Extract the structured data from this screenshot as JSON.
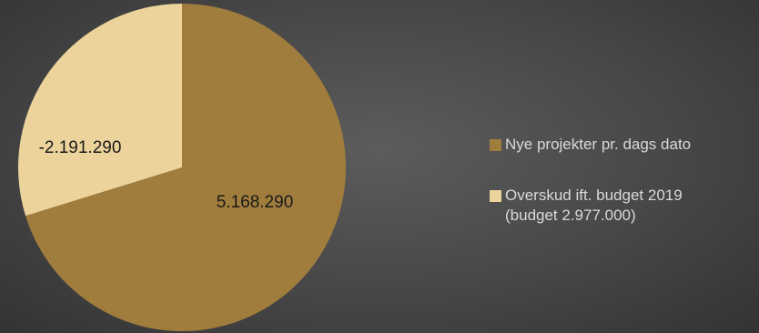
{
  "chart_data": {
    "type": "pie",
    "slices": [
      {
        "value": 5168290,
        "label": "5.168.290",
        "color": "#a07d3c"
      },
      {
        "value": 2191290,
        "label": "-2.191.290",
        "color": "#ebd39b"
      }
    ],
    "legend": {
      "placement": "right",
      "entries": [
        {
          "lines": [
            "Nye projekter pr. dags dato"
          ],
          "color": "#a07d3c"
        },
        {
          "lines": [
            "Overskud ift. budget 2019",
            "(budget 2.977.000)"
          ],
          "color": "#ebd39b"
        }
      ]
    }
  }
}
